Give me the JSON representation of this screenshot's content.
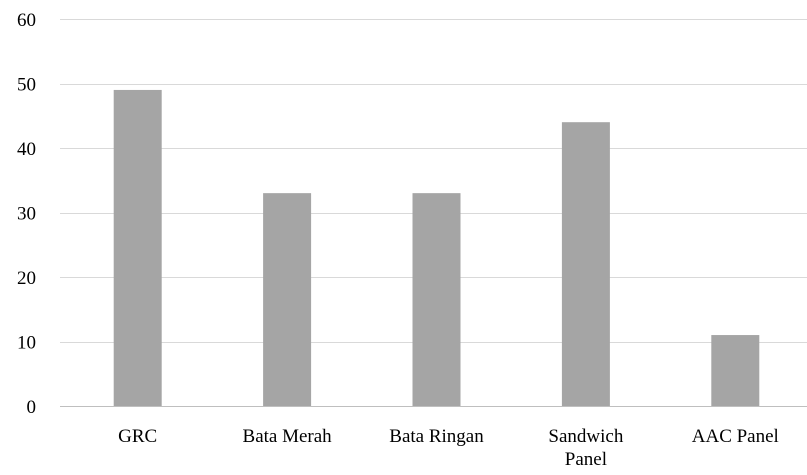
{
  "chart_data": {
    "type": "bar",
    "title": "",
    "xlabel": "",
    "ylabel": "",
    "categories": [
      "GRC",
      "Bata Merah",
      "Bata Ringan",
      "Sandwich Panel",
      "AAC Panel"
    ],
    "category_lines": [
      [
        "GRC"
      ],
      [
        "Bata Merah"
      ],
      [
        "Bata Ringan"
      ],
      [
        "Sandwich",
        "Panel"
      ],
      [
        "AAC Panel"
      ]
    ],
    "values": [
      49,
      33,
      33,
      44,
      11
    ],
    "ylim": [
      0,
      60
    ],
    "yticks": [
      0,
      10,
      20,
      30,
      40,
      50,
      60
    ],
    "ytick_labels": [
      "0",
      "10",
      "20",
      "30",
      "40",
      "50",
      "60"
    ],
    "grid": true,
    "legend": "none",
    "bar_color": "#a5a5a5"
  }
}
